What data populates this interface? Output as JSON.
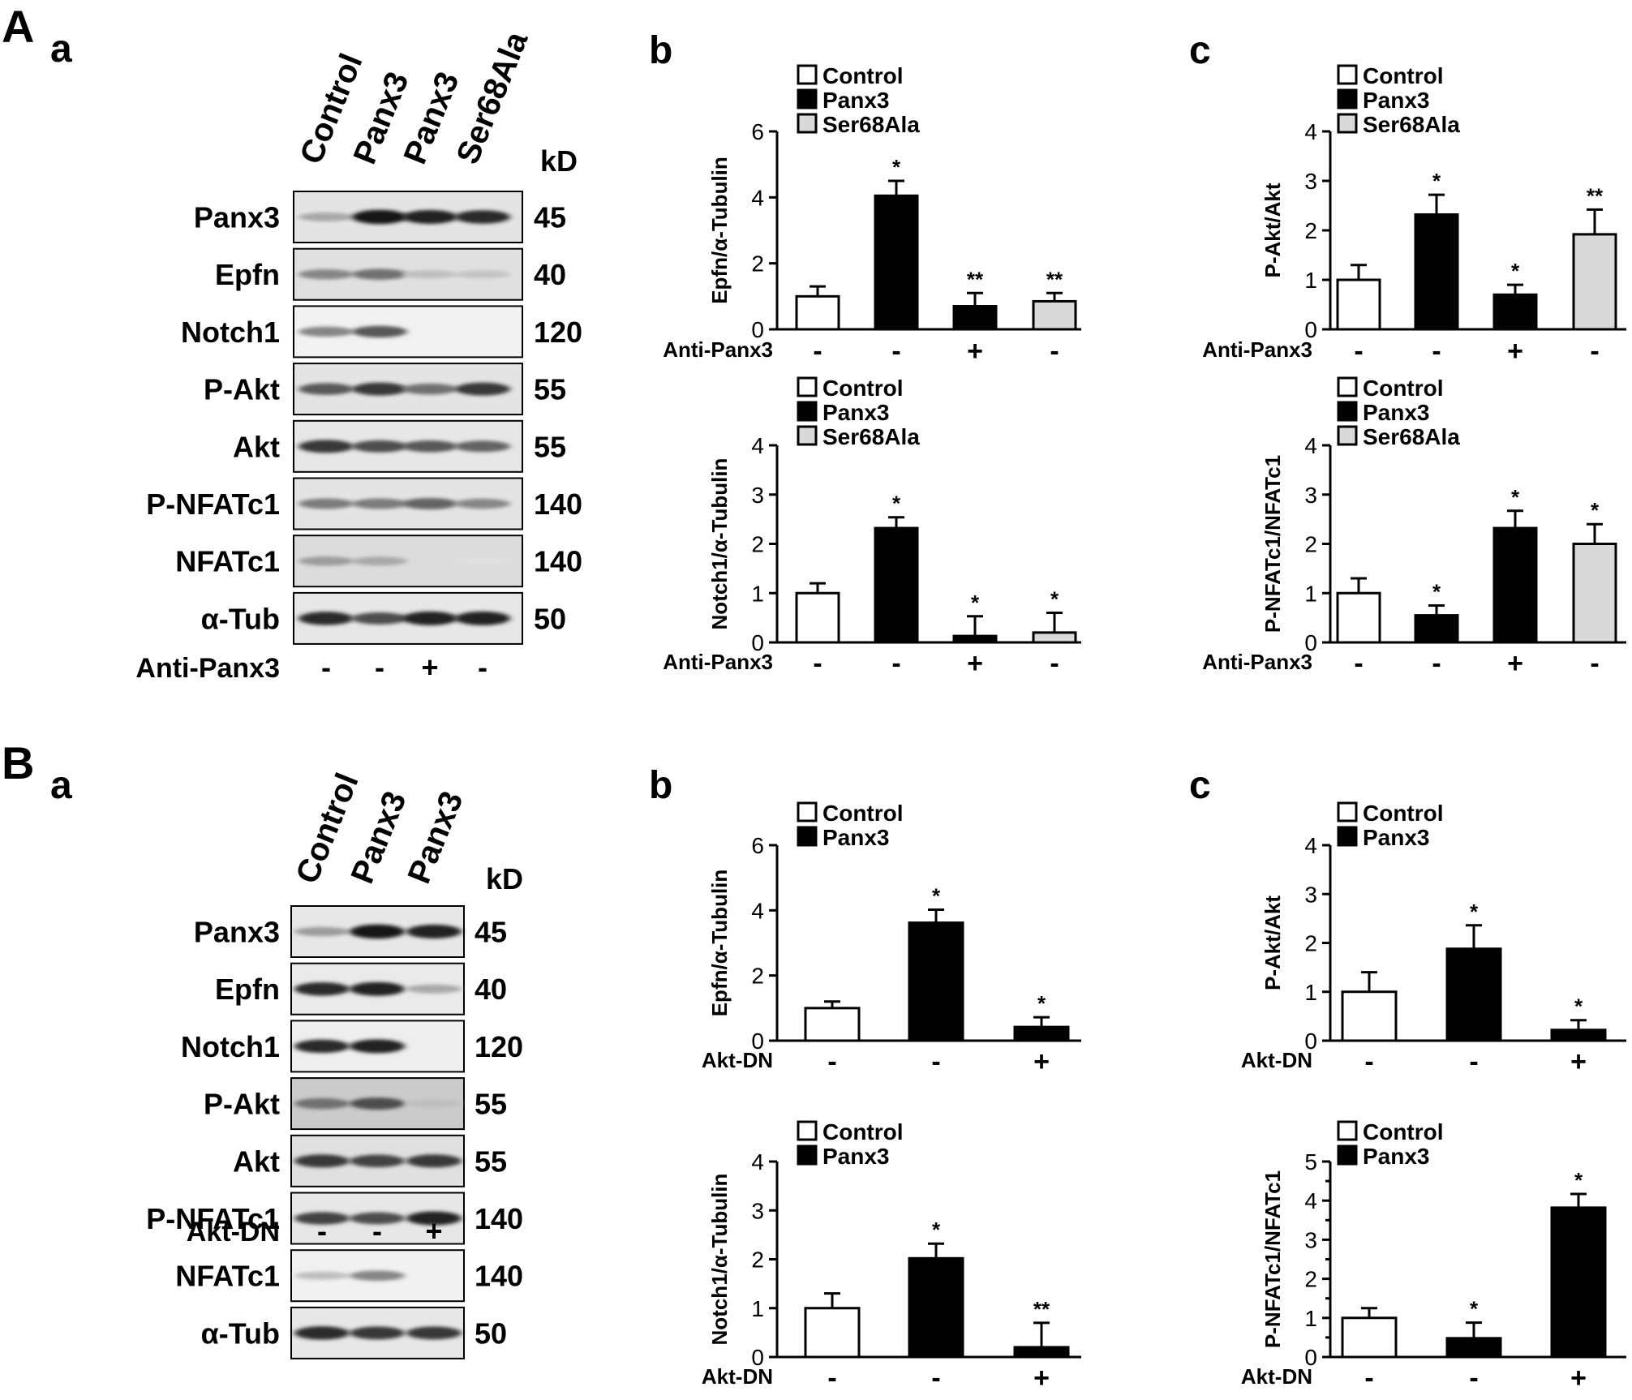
{
  "panels": {
    "A": {
      "letter": "A",
      "blot": {
        "sublabel": "a",
        "lanes": [
          "Control",
          "Panx3",
          "Panx3",
          "Ser68Ala"
        ],
        "kd_header": "kD",
        "rows": [
          {
            "name": "Panx3",
            "kd": "45",
            "bands": [
              0.3,
              0.95,
              0.9,
              0.85
            ],
            "background": 0.12
          },
          {
            "name": "Epfn",
            "kd": "40",
            "bands": [
              0.45,
              0.55,
              0.2,
              0.18
            ],
            "background": 0.15
          },
          {
            "name": "Notch1",
            "kd": "120",
            "bands": [
              0.45,
              0.65,
              0.0,
              0.0
            ],
            "background": 0.02
          },
          {
            "name": "P-Akt",
            "kd": "55",
            "bands": [
              0.65,
              0.8,
              0.55,
              0.8
            ],
            "background": 0.12
          },
          {
            "name": "Akt",
            "kd": "55",
            "bands": [
              0.8,
              0.7,
              0.65,
              0.6
            ],
            "background": 0.1
          },
          {
            "name": "P-NFATc1",
            "kd": "140",
            "bands": [
              0.5,
              0.5,
              0.6,
              0.45
            ],
            "background": 0.12
          },
          {
            "name": "NFATc1",
            "kd": "140",
            "bands": [
              0.35,
              0.3,
              0.0,
              0.05
            ],
            "background": 0.18
          },
          {
            "name": "α-Tub",
            "kd": "50",
            "bands": [
              0.85,
              0.7,
              0.9,
              0.9
            ],
            "background": 0.1
          }
        ],
        "treatment_label": "Anti-Panx3",
        "treatment": [
          "-",
          "-",
          "+",
          "-"
        ]
      },
      "legend": [
        "Control",
        "Panx3",
        "Ser68Ala"
      ]
    },
    "B": {
      "letter": "B",
      "blot": {
        "sublabel": "a",
        "lanes": [
          "Control",
          "Panx3",
          "Panx3"
        ],
        "kd_header": "kD",
        "rows": [
          {
            "name": "Panx3",
            "kd": "45",
            "bands": [
              0.35,
              0.95,
              0.9
            ],
            "background": 0.1
          },
          {
            "name": "Epfn",
            "kd": "40",
            "bands": [
              0.85,
              0.9,
              0.3
            ],
            "background": 0.08
          },
          {
            "name": "Notch1",
            "kd": "120",
            "bands": [
              0.85,
              0.9,
              0.0
            ],
            "background": 0.05
          },
          {
            "name": "P-Akt",
            "kd": "55",
            "bands": [
              0.55,
              0.7,
              0.2
            ],
            "background": 0.3
          },
          {
            "name": "Akt",
            "kd": "55",
            "bands": [
              0.8,
              0.75,
              0.8
            ],
            "background": 0.15
          },
          {
            "name": "P-NFATc1",
            "kd": "140",
            "bands": [
              0.75,
              0.7,
              0.9
            ],
            "background": 0.1
          },
          {
            "name": "NFATc1",
            "kd": "140",
            "bands": [
              0.2,
              0.45,
              0.0
            ],
            "background": 0.03
          },
          {
            "name": "α-Tub",
            "kd": "50",
            "bands": [
              0.85,
              0.8,
              0.8
            ],
            "background": 0.1
          }
        ],
        "treatment_label": "Akt-DN",
        "treatment": [
          "-",
          "-",
          "+"
        ]
      },
      "legend": [
        "Control",
        "Panx3"
      ]
    }
  },
  "colors": {
    "control_fill": "#ffffff",
    "panx3_fill": "#000000",
    "ser68ala_fill": "#d9d9d9",
    "axis": "#000000"
  },
  "chart_data": [
    {
      "id": "A-b-top",
      "sublabel": "b",
      "type": "bar",
      "ylabel": "Epfn/α-Tubulin",
      "ylim": [
        0,
        6
      ],
      "yticks": [
        0,
        2,
        4,
        6
      ],
      "legend": [
        "Control",
        "Panx3",
        "Ser68Ala"
      ],
      "categories": [
        "Control",
        "Panx3",
        "Panx3",
        "Ser68Ala"
      ],
      "fills": [
        "Control",
        "Panx3",
        "Panx3",
        "Ser68Ala"
      ],
      "values": [
        1.0,
        4.05,
        0.7,
        0.85
      ],
      "errors": [
        0.3,
        0.45,
        0.4,
        0.25
      ],
      "significance": [
        "",
        "*",
        "**",
        "**"
      ],
      "treatment_label": "Anti-Panx3",
      "treatment": [
        "-",
        "-",
        "+",
        "-"
      ]
    },
    {
      "id": "A-b-bottom",
      "type": "bar",
      "ylabel": "Notch1/α-Tubulin",
      "ylim": [
        0,
        4
      ],
      "yticks": [
        0,
        1,
        2,
        3,
        4
      ],
      "legend": [
        "Control",
        "Panx3",
        "Ser68Ala"
      ],
      "categories": [
        "Control",
        "Panx3",
        "Panx3",
        "Ser68Ala"
      ],
      "fills": [
        "Control",
        "Panx3",
        "Panx3",
        "Ser68Ala"
      ],
      "values": [
        1.0,
        2.32,
        0.13,
        0.2
      ],
      "errors": [
        0.2,
        0.22,
        0.4,
        0.4
      ],
      "significance": [
        "",
        "*",
        "*",
        "*"
      ],
      "treatment_label": "Anti-Panx3",
      "treatment": [
        "-",
        "-",
        "+",
        "-"
      ]
    },
    {
      "id": "A-c-top",
      "sublabel": "c",
      "type": "bar",
      "ylabel": "P-Akt/Akt",
      "ylim": [
        0,
        4
      ],
      "yticks": [
        0,
        1,
        2,
        3,
        4
      ],
      "legend": [
        "Control",
        "Panx3",
        "Ser68Ala"
      ],
      "categories": [
        "Control",
        "Panx3",
        "Panx3",
        "Ser68Ala"
      ],
      "fills": [
        "Control",
        "Panx3",
        "Panx3",
        "Ser68Ala"
      ],
      "values": [
        1.0,
        2.32,
        0.7,
        1.92
      ],
      "errors": [
        0.3,
        0.4,
        0.2,
        0.5
      ],
      "significance": [
        "",
        "*",
        "*",
        "**"
      ],
      "treatment_label": "Anti-Panx3",
      "treatment": [
        "-",
        "-",
        "+",
        "-"
      ]
    },
    {
      "id": "A-c-bottom",
      "type": "bar",
      "ylabel": "P-NFATc1/NFATc1",
      "ylim": [
        0,
        4
      ],
      "yticks": [
        0,
        1,
        2,
        3,
        4
      ],
      "legend": [
        "Control",
        "Panx3",
        "Ser68Ala"
      ],
      "categories": [
        "Control",
        "Panx3",
        "Panx3",
        "Ser68Ala"
      ],
      "fills": [
        "Control",
        "Panx3",
        "Panx3",
        "Ser68Ala"
      ],
      "values": [
        1.0,
        0.55,
        2.32,
        2.0
      ],
      "errors": [
        0.3,
        0.2,
        0.35,
        0.4
      ],
      "significance": [
        "",
        "*",
        "*",
        "*"
      ],
      "treatment_label": "Anti-Panx3",
      "treatment": [
        "-",
        "-",
        "+",
        "-"
      ]
    },
    {
      "id": "B-b-top",
      "sublabel": "b",
      "type": "bar",
      "ylabel": "Epfn/α-Tubulin",
      "ylim": [
        0,
        6
      ],
      "yticks": [
        0,
        2,
        4,
        6
      ],
      "legend": [
        "Control",
        "Panx3"
      ],
      "categories": [
        "Control",
        "Panx3",
        "Panx3"
      ],
      "fills": [
        "Control",
        "Panx3",
        "Panx3"
      ],
      "values": [
        1.0,
        3.62,
        0.42
      ],
      "errors": [
        0.2,
        0.4,
        0.3
      ],
      "significance": [
        "",
        "*",
        "*"
      ],
      "treatment_label": "Akt-DN",
      "treatment": [
        "-",
        "-",
        "+"
      ]
    },
    {
      "id": "B-b-bottom",
      "type": "bar",
      "ylabel": "Notch1/α-Tubulin",
      "ylim": [
        0,
        4
      ],
      "yticks": [
        0,
        1,
        2,
        3,
        4
      ],
      "legend": [
        "Control",
        "Panx3"
      ],
      "categories": [
        "Control",
        "Panx3",
        "Panx3"
      ],
      "fills": [
        "Control",
        "Panx3",
        "Panx3"
      ],
      "values": [
        1.0,
        2.02,
        0.2
      ],
      "errors": [
        0.3,
        0.3,
        0.5
      ],
      "significance": [
        "",
        "*",
        "**"
      ],
      "treatment_label": "Akt-DN",
      "treatment": [
        "-",
        "-",
        "+"
      ]
    },
    {
      "id": "B-c-top",
      "sublabel": "c",
      "type": "bar",
      "ylabel": "P-Akt/Akt",
      "ylim": [
        0,
        4
      ],
      "yticks": [
        0,
        1,
        2,
        3,
        4
      ],
      "legend": [
        "Control",
        "Panx3"
      ],
      "categories": [
        "Control",
        "Panx3",
        "Panx3"
      ],
      "fills": [
        "Control",
        "Panx3",
        "Panx3"
      ],
      "values": [
        1.0,
        1.88,
        0.22
      ],
      "errors": [
        0.4,
        0.48,
        0.2
      ],
      "significance": [
        "",
        "*",
        "*"
      ],
      "treatment_label": "Akt-DN",
      "treatment": [
        "-",
        "-",
        "+"
      ]
    },
    {
      "id": "B-c-bottom",
      "type": "bar",
      "ylabel": "P-NFATc1/NFATc1",
      "ylim": [
        0,
        5
      ],
      "yticks": [
        0,
        0.5,
        1,
        1.5,
        2,
        2.5,
        3,
        3.5,
        4,
        4.5,
        5
      ],
      "legend": [
        "Control",
        "Panx3"
      ],
      "categories": [
        "Control",
        "Panx3",
        "Panx3"
      ],
      "fills": [
        "Control",
        "Panx3",
        "Panx3"
      ],
      "values": [
        1.0,
        0.48,
        3.82
      ],
      "errors": [
        0.25,
        0.4,
        0.35
      ],
      "significance": [
        "",
        "*",
        "*"
      ],
      "treatment_label": "Akt-DN",
      "treatment": [
        "-",
        "-",
        "+"
      ]
    }
  ]
}
